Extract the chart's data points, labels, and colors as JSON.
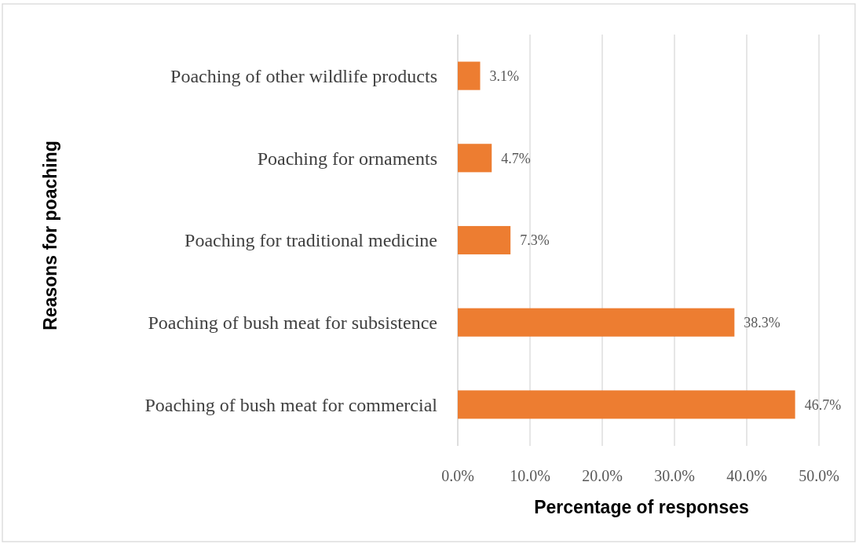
{
  "chart_data": {
    "type": "bar",
    "orientation": "horizontal",
    "xlabel": "Percentage of responses",
    "ylabel": "Reasons for poaching",
    "categories": [
      "Poaching of other wildlife products",
      "Poaching for ornaments",
      "Poaching for traditional medicine",
      "Poaching of bush meat for subsistence",
      "Poaching of bush meat for commercial"
    ],
    "values": [
      3.1,
      4.7,
      7.3,
      38.3,
      46.7
    ],
    "value_labels": [
      "3.1%",
      "4.7%",
      "7.3%",
      "38.3%",
      "46.7%"
    ],
    "color": "#ed7d31",
    "xlim": [
      0,
      50
    ],
    "xticks": [
      {
        "value": 0,
        "label": "0.0%"
      },
      {
        "value": 10,
        "label": "10.0%"
      },
      {
        "value": 20,
        "label": "20.0%"
      },
      {
        "value": 30,
        "label": "30.0%"
      },
      {
        "value": 40,
        "label": "40.0%"
      },
      {
        "value": 50,
        "label": "50.0%"
      }
    ],
    "grid": "x"
  }
}
